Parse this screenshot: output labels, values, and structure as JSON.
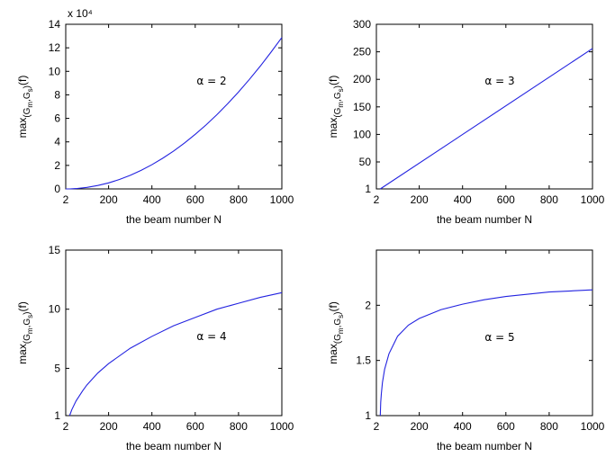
{
  "chart_data": [
    {
      "type": "line",
      "xlabel": "the beam number N",
      "ylabel": "max{(G_m,G_s)}(f)",
      "ylabel_parts": {
        "base": "max",
        "s1": "(G",
        "s2": "m",
        "s3": ",G",
        "s4": "s",
        "s5": ")",
        "tail": "(f)"
      },
      "annotation": "α = 2",
      "exponent_label": "x 10⁴",
      "xlim": [
        2,
        1000
      ],
      "ylim": [
        0,
        14
      ],
      "xticks": [
        "2",
        "200",
        "400",
        "600",
        "800",
        "1000"
      ],
      "xtick_values": [
        2,
        200,
        400,
        600,
        800,
        1000
      ],
      "yticks": [
        "0",
        "2",
        "4",
        "6",
        "8",
        "10",
        "12",
        "14"
      ],
      "ytick_values": [
        0,
        2,
        4,
        6,
        8,
        10,
        12,
        14
      ],
      "x": [
        2,
        20,
        50,
        100,
        150,
        200,
        250,
        300,
        350,
        400,
        450,
        500,
        550,
        600,
        650,
        700,
        750,
        800,
        850,
        900,
        950,
        1000
      ],
      "y": [
        0,
        0.0,
        0.03,
        0.13,
        0.29,
        0.51,
        0.8,
        1.16,
        1.58,
        2.06,
        2.61,
        3.22,
        3.9,
        4.64,
        5.44,
        6.31,
        7.25,
        8.24,
        9.31,
        10.43,
        11.63,
        12.88
      ],
      "color": "#2323e0",
      "grid": false
    },
    {
      "type": "line",
      "xlabel": "the beam number N",
      "ylabel": "max{(G_m,G_s)}(f)",
      "ylabel_parts": {
        "base": "max",
        "s1": "(G",
        "s2": "m",
        "s3": ",G",
        "s4": "s",
        "s5": ")",
        "tail": "(f)"
      },
      "annotation": "α = 3",
      "xlim": [
        2,
        1000
      ],
      "ylim": [
        1,
        300
      ],
      "xticks": [
        "2",
        "200",
        "400",
        "600",
        "800",
        "1000"
      ],
      "xtick_values": [
        2,
        200,
        400,
        600,
        800,
        1000
      ],
      "yticks": [
        "1",
        "50",
        "100",
        "150",
        "200",
        "250",
        "300"
      ],
      "ytick_values": [
        1,
        50,
        100,
        150,
        200,
        250,
        300
      ],
      "x": [
        20,
        1000
      ],
      "y": [
        1,
        256
      ],
      "color": "#2323e0",
      "grid": false
    },
    {
      "type": "line",
      "xlabel": "the beam number N",
      "ylabel": "max{(G_m,G_s)}(f)",
      "ylabel_parts": {
        "base": "max",
        "s1": "(G",
        "s2": "m",
        "s3": ",G",
        "s4": "s",
        "s5": ")",
        "tail": "(f)"
      },
      "annotation": "α = 4",
      "xlim": [
        2,
        1000
      ],
      "ylim": [
        1,
        15
      ],
      "xticks": [
        "2",
        "200",
        "400",
        "600",
        "800",
        "1000"
      ],
      "xtick_values": [
        2,
        200,
        400,
        600,
        800,
        1000
      ],
      "yticks": [
        "1",
        "5",
        "10",
        "15"
      ],
      "ytick_values": [
        1,
        5,
        10,
        15
      ],
      "x": [
        20,
        30,
        50,
        80,
        100,
        150,
        200,
        300,
        400,
        500,
        600,
        700,
        800,
        900,
        1000
      ],
      "y": [
        1.0,
        1.5,
        2.25,
        3.1,
        3.6,
        4.6,
        5.4,
        6.7,
        7.7,
        8.6,
        9.3,
        10.0,
        10.5,
        11.0,
        11.4
      ],
      "color": "#2323e0",
      "grid": false
    },
    {
      "type": "line",
      "xlabel": "the beam number N",
      "ylabel": "max{(G_m,G_s)}(f)",
      "ylabel_parts": {
        "base": "max",
        "s1": "(G",
        "s2": "m",
        "s3": ",G",
        "s4": "s",
        "s5": ")",
        "tail": "(f)"
      },
      "annotation": "α = 5",
      "xlim": [
        2,
        1000
      ],
      "ylim": [
        1,
        2.5
      ],
      "xticks": [
        "2",
        "200",
        "400",
        "600",
        "800",
        "1000"
      ],
      "xtick_values": [
        2,
        200,
        400,
        600,
        800,
        1000
      ],
      "yticks": [
        "1",
        "1.5",
        "2"
      ],
      "ytick_values": [
        1,
        1.5,
        2
      ],
      "x": [
        20,
        22,
        25,
        30,
        40,
        60,
        100,
        150,
        200,
        300,
        400,
        500,
        600,
        700,
        800,
        900,
        1000
      ],
      "y": [
        1.0,
        1.12,
        1.2,
        1.3,
        1.42,
        1.56,
        1.72,
        1.82,
        1.88,
        1.96,
        2.01,
        2.05,
        2.08,
        2.1,
        2.12,
        2.13,
        2.14
      ],
      "color": "#2323e0",
      "grid": false
    }
  ]
}
